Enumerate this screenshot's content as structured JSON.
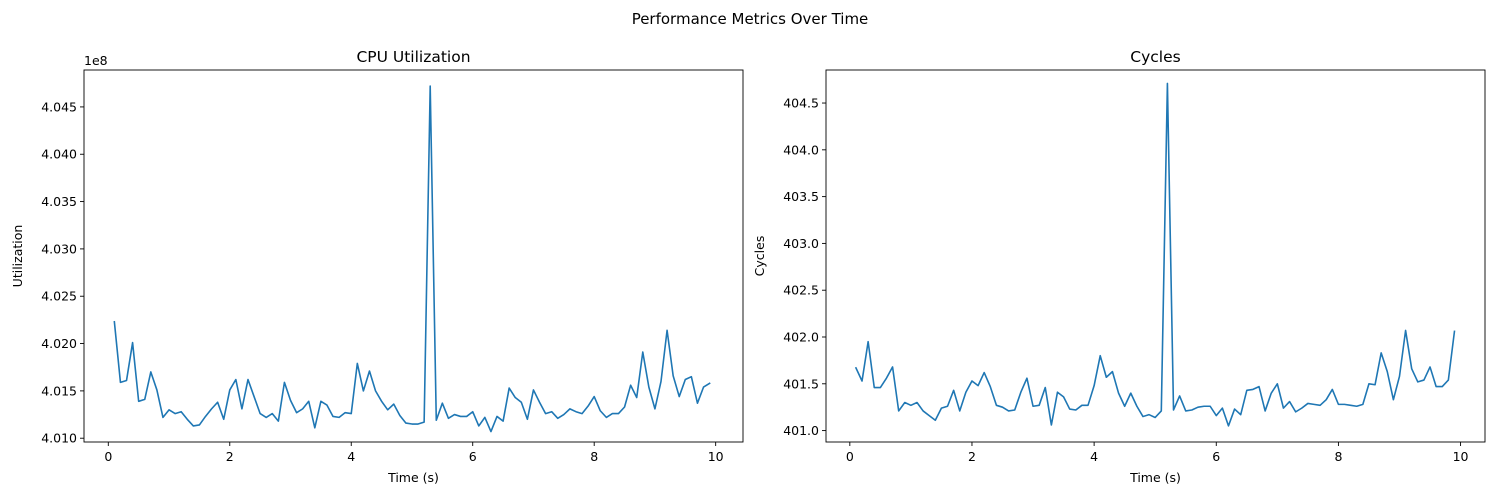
{
  "figure": {
    "title": "Performance Metrics Over Time"
  },
  "chart_data": [
    {
      "type": "line",
      "title": "CPU Utilization",
      "xlabel": "Time (s)",
      "ylabel": "Utilization",
      "offset_text": "1e8",
      "xlim": [
        -0.4,
        10.45
      ],
      "ylim": [
        4.0096,
        4.0489
      ],
      "xticks": [
        0,
        2,
        4,
        6,
        8,
        10
      ],
      "xtick_labels": [
        "0",
        "2",
        "4",
        "6",
        "8",
        "10"
      ],
      "yticks": [
        4.01,
        4.015,
        4.02,
        4.025,
        4.03,
        4.035,
        4.04,
        4.045
      ],
      "ytick_labels": [
        "4.010",
        "4.015",
        "4.020",
        "4.025",
        "4.030",
        "4.035",
        "4.040",
        "4.045"
      ],
      "grid": false,
      "color": "#1f77b4",
      "series": [
        {
          "x": [
            0.1,
            0.2,
            0.3,
            0.4,
            0.5,
            0.6,
            0.7,
            0.8,
            0.9,
            1.0,
            1.1,
            1.2,
            1.3,
            1.4,
            1.5,
            1.6,
            1.7,
            1.8,
            1.9,
            2.0,
            2.1,
            2.2,
            2.3,
            2.4,
            2.5,
            2.6,
            2.7,
            2.8,
            2.9,
            3.0,
            3.1,
            3.2,
            3.3,
            3.4,
            3.5,
            3.6,
            3.7,
            3.8,
            3.9,
            4.0,
            4.1,
            4.2,
            4.3,
            4.4,
            4.5,
            4.6,
            4.7,
            4.8,
            4.9,
            5.0,
            5.1,
            5.2,
            5.3,
            5.4,
            5.5,
            5.6,
            5.7,
            5.8,
            5.9,
            6.0,
            6.1,
            6.2,
            6.3,
            6.4,
            6.5,
            6.6,
            6.7,
            6.8,
            6.9,
            7.0,
            7.1,
            7.2,
            7.3,
            7.4,
            7.5,
            7.6,
            7.7,
            7.8,
            7.9,
            8.0,
            8.1,
            8.2,
            8.3,
            8.4,
            8.5,
            8.6,
            8.7,
            8.8,
            8.9,
            9.0,
            9.1,
            9.2,
            9.3,
            9.4,
            9.5,
            9.6,
            9.7,
            9.8,
            9.9
          ],
          "values": [
            4.0223,
            4.0159,
            4.0161,
            4.0201,
            4.0139,
            4.0141,
            4.017,
            4.0151,
            4.0122,
            4.013,
            4.0126,
            4.0128,
            4.012,
            4.0113,
            4.0114,
            4.0123,
            4.0131,
            4.0138,
            4.012,
            4.0151,
            4.0162,
            4.0131,
            4.0162,
            4.0144,
            4.0126,
            4.0122,
            4.0126,
            4.0118,
            4.0159,
            4.014,
            4.0127,
            4.0131,
            4.0139,
            4.0111,
            4.0139,
            4.0135,
            4.0123,
            4.0122,
            4.0127,
            4.0126,
            4.0179,
            4.015,
            4.0171,
            4.015,
            4.0139,
            4.013,
            4.0136,
            4.0124,
            4.0116,
            4.0115,
            4.0115,
            4.0117,
            4.0472,
            4.0119,
            4.0137,
            4.0121,
            4.0125,
            4.0123,
            4.0123,
            4.0128,
            4.0113,
            4.0122,
            4.0107,
            4.0123,
            4.0118,
            4.0153,
            4.0143,
            4.0138,
            4.012,
            4.0151,
            4.0138,
            4.0126,
            4.0128,
            4.0121,
            4.0125,
            4.0131,
            4.0128,
            4.0126,
            4.0134,
            4.0144,
            4.0129,
            4.0122,
            4.0126,
            4.0126,
            4.0133,
            4.0156,
            4.0143,
            4.0191,
            4.0154,
            4.0131,
            4.016,
            4.0214,
            4.0166,
            4.0144,
            4.0162,
            4.0165,
            4.0137,
            4.0154,
            4.0158
          ]
        }
      ]
    },
    {
      "type": "line",
      "title": "Cycles",
      "xlabel": "Time (s)",
      "ylabel": "Cycles",
      "xlim": [
        -0.39,
        10.4
      ],
      "ylim": [
        400.878,
        404.853
      ],
      "xticks": [
        0,
        2,
        4,
        6,
        8,
        10
      ],
      "xtick_labels": [
        "0",
        "2",
        "4",
        "6",
        "8",
        "10"
      ],
      "yticks": [
        401.0,
        401.5,
        402.0,
        402.5,
        403.0,
        403.5,
        404.0,
        404.5
      ],
      "ytick_labels": [
        "401.0",
        "401.5",
        "402.0",
        "402.5",
        "403.0",
        "403.5",
        "404.0",
        "404.5"
      ],
      "grid": false,
      "color": "#1f77b4",
      "series": [
        {
          "x": [
            0.1,
            0.2,
            0.3,
            0.4,
            0.5,
            0.6,
            0.7,
            0.8,
            0.9,
            1.0,
            1.1,
            1.2,
            1.3,
            1.4,
            1.5,
            1.6,
            1.7,
            1.8,
            1.9,
            2.0,
            2.1,
            2.2,
            2.3,
            2.4,
            2.5,
            2.6,
            2.7,
            2.8,
            2.9,
            3.0,
            3.1,
            3.2,
            3.3,
            3.4,
            3.5,
            3.6,
            3.7,
            3.8,
            3.9,
            4.0,
            4.1,
            4.2,
            4.3,
            4.4,
            4.5,
            4.6,
            4.7,
            4.8,
            4.9,
            5.0,
            5.1,
            5.2,
            5.3,
            5.4,
            5.5,
            5.6,
            5.7,
            5.8,
            5.9,
            6.0,
            6.1,
            6.2,
            6.3,
            6.4,
            6.5,
            6.6,
            6.7,
            6.8,
            6.9,
            7.0,
            7.1,
            7.2,
            7.3,
            7.4,
            7.5,
            7.6,
            7.7,
            7.8,
            7.9,
            8.0,
            8.1,
            8.2,
            8.3,
            8.4,
            8.5,
            8.6,
            8.7,
            8.8,
            8.9,
            9.0,
            9.1,
            9.2,
            9.3,
            9.4,
            9.5,
            9.6,
            9.7,
            9.8,
            9.9
          ],
          "values": [
            401.67,
            401.53,
            401.95,
            401.46,
            401.46,
            401.56,
            401.68,
            401.21,
            401.3,
            401.27,
            401.3,
            401.21,
            401.16,
            401.11,
            401.24,
            401.26,
            401.43,
            401.21,
            401.41,
            401.53,
            401.48,
            401.62,
            401.47,
            401.27,
            401.25,
            401.21,
            401.22,
            401.41,
            401.56,
            401.26,
            401.27,
            401.46,
            401.06,
            401.41,
            401.36,
            401.23,
            401.22,
            401.27,
            401.27,
            401.48,
            401.8,
            401.57,
            401.63,
            401.4,
            401.26,
            401.4,
            401.26,
            401.15,
            401.17,
            401.14,
            401.21,
            404.71,
            401.22,
            401.37,
            401.21,
            401.22,
            401.25,
            401.26,
            401.26,
            401.16,
            401.24,
            401.05,
            401.23,
            401.17,
            401.43,
            401.44,
            401.47,
            401.21,
            401.4,
            401.5,
            401.24,
            401.31,
            401.2,
            401.24,
            401.29,
            401.28,
            401.27,
            401.33,
            401.44,
            401.28,
            401.28,
            401.27,
            401.26,
            401.28,
            401.5,
            401.49,
            401.83,
            401.63,
            401.33,
            401.58,
            402.07,
            401.66,
            401.52,
            401.54,
            401.68,
            401.47,
            401.47,
            401.54,
            402.06
          ]
        }
      ]
    }
  ]
}
